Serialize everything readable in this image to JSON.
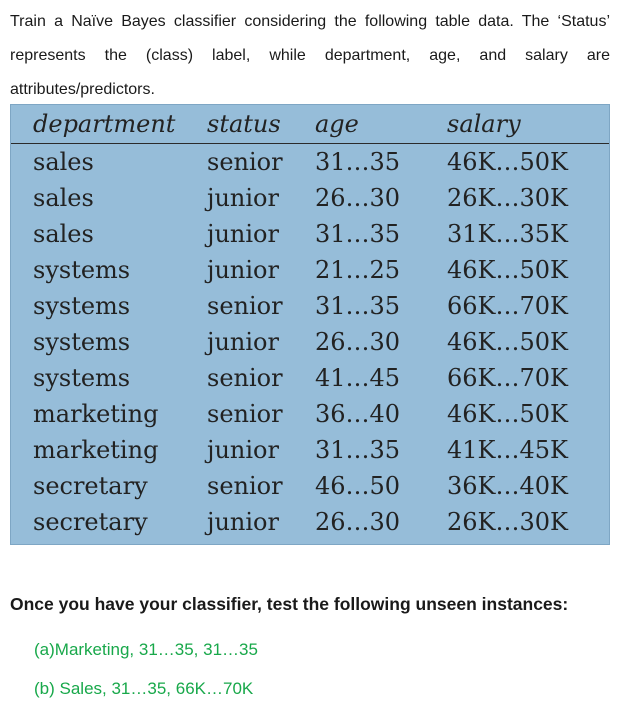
{
  "intro": {
    "text": "Train a Naïve Bayes classifier considering the following table data. The ‘Status’ represents the (class) label, while department, age, and salary are attributes/predictors."
  },
  "table": {
    "headers": [
      "department",
      "status",
      "age",
      "salary"
    ],
    "rows": [
      [
        "sales",
        "senior",
        "31…35",
        "46K…50K"
      ],
      [
        "sales",
        "junior",
        "26…30",
        "26K…30K"
      ],
      [
        "sales",
        "junior",
        "31…35",
        "31K…35K"
      ],
      [
        "systems",
        "junior",
        "21…25",
        "46K…50K"
      ],
      [
        "systems",
        "senior",
        "31…35",
        "66K…70K"
      ],
      [
        "systems",
        "junior",
        "26…30",
        "46K…50K"
      ],
      [
        "systems",
        "senior",
        "41…45",
        "66K…70K"
      ],
      [
        "marketing",
        "senior",
        "36…40",
        "46K…50K"
      ],
      [
        "marketing",
        "junior",
        "31…35",
        "41K…45K"
      ],
      [
        "secretary",
        "senior",
        "46…50",
        "36K…40K"
      ],
      [
        "secretary",
        "junior",
        "26…30",
        "26K…30K"
      ]
    ]
  },
  "question": "Once you have your classifier, test the following unseen instances:",
  "instances": [
    "(a)Marketing, 31…35, 31…35",
    "(b) Sales, 31…35, 66K…70K"
  ],
  "colors": {
    "table_background": "#96bdd9",
    "instance_text": "#18a84a"
  }
}
